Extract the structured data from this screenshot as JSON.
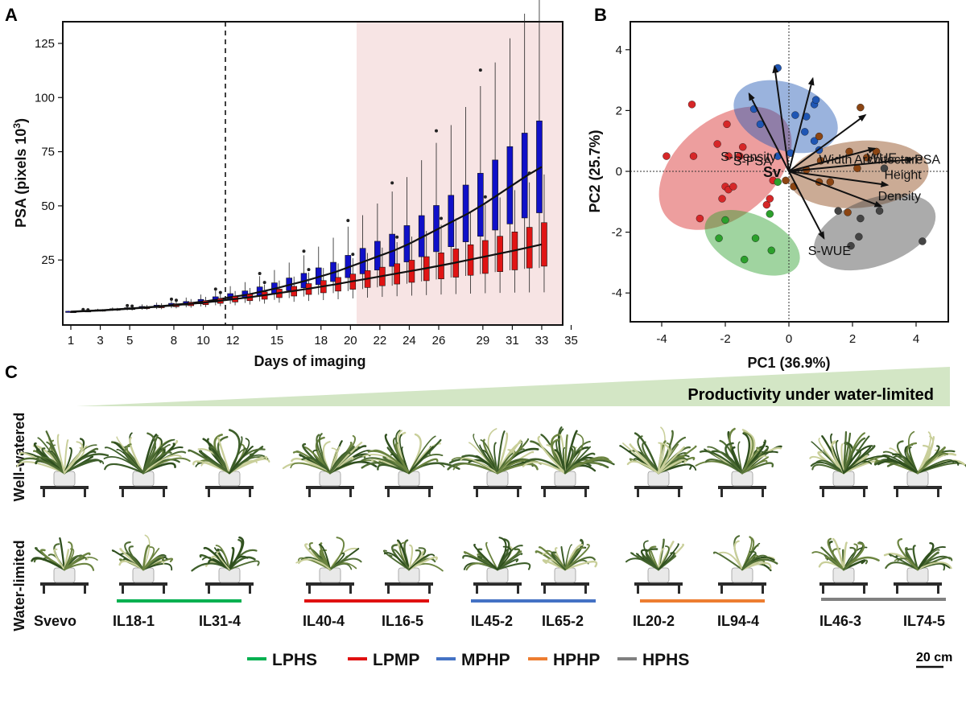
{
  "panel_a": {
    "letter": "A",
    "chart_data": {
      "type": "box",
      "xlabel": "Days of imaging",
      "ylabel_main": "PSA (pixels 10",
      "ylabel_sup": "3",
      "ylabel_end": ")",
      "xticks": [
        1,
        3,
        5,
        8,
        10,
        12,
        15,
        18,
        20,
        22,
        24,
        26,
        29,
        31,
        33,
        35
      ],
      "yticks": [
        25,
        50,
        75,
        100,
        125
      ],
      "ylim": [
        -5,
        135
      ],
      "stress_start_label": "12",
      "shaded_region_from": "22",
      "series": [
        {
          "name": "blue",
          "color": "#1010c8",
          "medians": [
            1.2,
            1.5,
            1.8,
            2.2,
            2.6,
            3.1,
            3.6,
            4.3,
            5.0,
            5.8,
            6.8,
            8,
            9,
            10.5,
            12,
            13.8,
            15.5,
            17.5,
            19.5,
            22,
            24.5,
            27,
            29.5,
            32.5,
            36,
            39.5,
            43,
            46.5,
            50.5,
            55,
            59.5,
            64,
            68
          ]
        },
        {
          "name": "red",
          "color": "#e01414",
          "medians": [
            1.1,
            1.4,
            1.7,
            2.1,
            2.5,
            3.0,
            3.5,
            4.1,
            4.7,
            5.3,
            6.1,
            6.9,
            7.7,
            8.6,
            9.6,
            10.6,
            11.6,
            12.7,
            13.8,
            15,
            16.2,
            17.4,
            18.6,
            19.8,
            21,
            22.3,
            23.6,
            25,
            26.4,
            27.8,
            29.2,
            30.7,
            32.2
          ]
        }
      ]
    }
  },
  "panel_b": {
    "letter": "B",
    "chart_data": {
      "type": "scatter",
      "xlabel": "PC1 (36.9%)",
      "ylabel": "PC2 (25.7%)",
      "xlim": [
        -5,
        5
      ],
      "ylim": [
        -5,
        5
      ],
      "xticks": [
        -4,
        -2,
        0,
        2,
        4
      ],
      "yticks": [
        -4,
        -2,
        0,
        2,
        4
      ],
      "center_label": "Sv",
      "loadings": [
        {
          "label": "S-Density",
          "x": -0.45,
          "y": 3.45
        },
        {
          "label": "S-PSA",
          "x": -1.25,
          "y": 2.55
        },
        {
          "label": "Width",
          "x": 0.75,
          "y": 3.05
        },
        {
          "label": "Architecture",
          "x": 2.4,
          "y": 1.85
        },
        {
          "label": "WUE",
          "x": 2.7,
          "y": 0.75
        },
        {
          "label": "PSA",
          "x": 3.9,
          "y": 0.4
        },
        {
          "label": "Height",
          "x": 3.1,
          "y": -0.45
        },
        {
          "label": "Density",
          "x": 2.9,
          "y": -1.15
        },
        {
          "label": "S-WUE",
          "x": 1.1,
          "y": -2.2
        }
      ],
      "groups": [
        {
          "name": "red",
          "color": "#d62728",
          "ellipse": {
            "cx": -2.0,
            "cy": 0.1,
            "rx": 2.4,
            "ry": 1.6,
            "angle": -40
          },
          "points": [
            [
              -3.05,
              2.2
            ],
            [
              -1.95,
              1.55
            ],
            [
              -2.25,
              0.9
            ],
            [
              -1.45,
              0.8
            ],
            [
              -1.9,
              0.5
            ],
            [
              -3.85,
              0.5
            ],
            [
              -3.0,
              0.5
            ],
            [
              -1.55,
              0.5
            ],
            [
              -2.0,
              -0.5
            ],
            [
              -1.9,
              -0.6
            ],
            [
              -1.75,
              -0.5
            ],
            [
              -2.1,
              -0.9
            ],
            [
              -2.8,
              -1.55
            ],
            [
              -0.7,
              -1.1
            ],
            [
              -0.5,
              -0.3
            ],
            [
              -0.6,
              -0.9
            ]
          ]
        },
        {
          "name": "blue",
          "color": "#1f56b4",
          "ellipse": {
            "cx": -0.1,
            "cy": 1.8,
            "rx": 1.7,
            "ry": 1.1,
            "angle": 20
          },
          "points": [
            [
              -0.35,
              3.4
            ],
            [
              -1.1,
              2.05
            ],
            [
              -0.9,
              1.55
            ],
            [
              0.2,
              1.85
            ],
            [
              0.55,
              1.8
            ],
            [
              0.8,
              2.2
            ],
            [
              0.85,
              2.35
            ],
            [
              0.5,
              1.3
            ],
            [
              0.05,
              0.6
            ],
            [
              -0.35,
              0.5
            ],
            [
              0.8,
              1.0
            ],
            [
              0.95,
              0.7
            ]
          ]
        },
        {
          "name": "green",
          "color": "#2ca02c",
          "ellipse": {
            "cx": -1.15,
            "cy": -2.35,
            "rx": 1.6,
            "ry": 0.9,
            "angle": 25
          },
          "points": [
            [
              -2.0,
              -1.6
            ],
            [
              -2.2,
              -2.2
            ],
            [
              -1.05,
              -2.2
            ],
            [
              -1.4,
              -2.9
            ],
            [
              -0.55,
              -2.6
            ],
            [
              -0.6,
              -1.4
            ],
            [
              -0.35,
              -0.35
            ]
          ]
        },
        {
          "name": "brown",
          "color": "#8b4513",
          "ellipse": {
            "cx": 2.2,
            "cy": -0.1,
            "rx": 2.2,
            "ry": 1.1,
            "angle": -5
          },
          "points": [
            [
              2.25,
              2.1
            ],
            [
              0.95,
              1.15
            ],
            [
              1.9,
              0.65
            ],
            [
              2.75,
              0.65
            ],
            [
              2.45,
              0.45
            ],
            [
              2.15,
              0.1
            ],
            [
              1.0,
              0.35
            ],
            [
              0.55,
              0.05
            ],
            [
              1.3,
              -0.35
            ],
            [
              0.95,
              -0.35
            ],
            [
              1.85,
              -1.35
            ],
            [
              0.15,
              -0.5
            ],
            [
              -0.1,
              -0.3
            ]
          ]
        },
        {
          "name": "gray",
          "color": "#444444",
          "ellipse": {
            "cx": 2.7,
            "cy": -2.0,
            "rx": 2.0,
            "ry": 1.1,
            "angle": -20
          },
          "points": [
            [
              3.0,
              0.1
            ],
            [
              1.55,
              -1.3
            ],
            [
              2.85,
              -1.3
            ],
            [
              2.25,
              -1.55
            ],
            [
              2.2,
              -2.15
            ],
            [
              1.95,
              -2.45
            ],
            [
              4.2,
              -2.3
            ]
          ]
        }
      ]
    }
  },
  "panel_c": {
    "letter": "C",
    "banner": "Productivity under water-limited",
    "row_labels": {
      "top": "Well-watered",
      "bottom": "Water-limited"
    },
    "genotypes": [
      "Svevo",
      "IL18-1",
      "IL31-4",
      "IL40-4",
      "IL16-5",
      "IL45-2",
      "IL65-2",
      "IL20-2",
      "IL94-4",
      "IL46-3",
      "IL74-5"
    ],
    "legend": [
      {
        "label": "LPHS",
        "color": "#00b050"
      },
      {
        "label": "LPMP",
        "color": "#e01010"
      },
      {
        "label": "MPHP",
        "color": "#4472c4"
      },
      {
        "label": "HPHP",
        "color": "#ed7d31"
      },
      {
        "label": "HPHS",
        "color": "#808080"
      }
    ],
    "scale_bar": "20 cm"
  }
}
